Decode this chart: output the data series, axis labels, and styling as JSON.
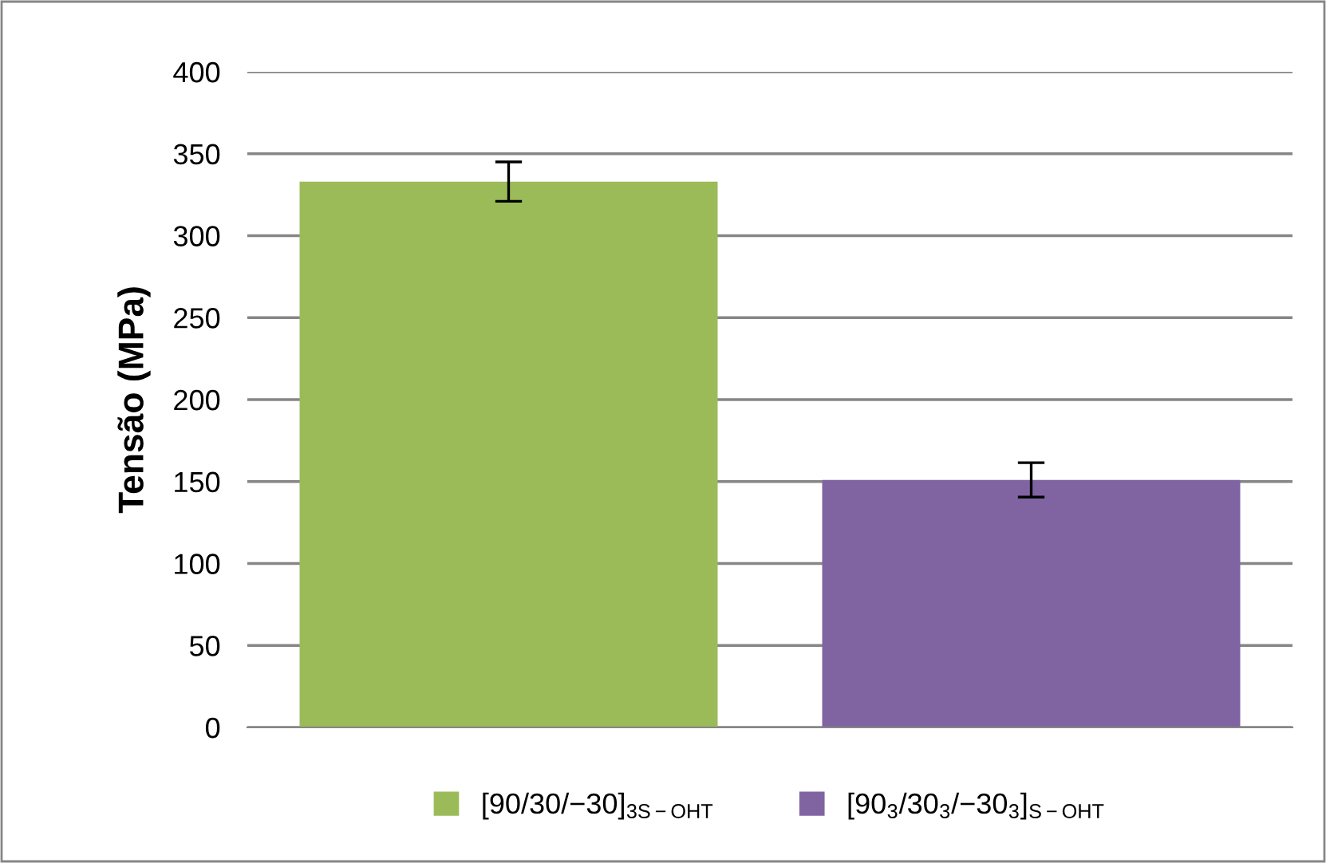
{
  "chart_data": {
    "type": "bar",
    "ylabel": "Tensão (MPa)",
    "categories": [
      null
    ],
    "series": [
      {
        "name": "[90/30/−30]$_{3S−OHT}$",
        "color": "#9bbb59",
        "values": [
          333
        ],
        "errors": [
          12
        ]
      },
      {
        "name": "[90$_{3}$/30$_{3}$/−30$_{3}$]$_{S−OHT}$",
        "color": "#8064a2",
        "values": [
          151
        ],
        "errors": [
          10.5
        ]
      }
    ],
    "ylim": [
      0,
      400
    ],
    "yticks": [
      0,
      50,
      100,
      150,
      200,
      250,
      300,
      350,
      400
    ],
    "grid": "y",
    "legend": "bottom"
  }
}
